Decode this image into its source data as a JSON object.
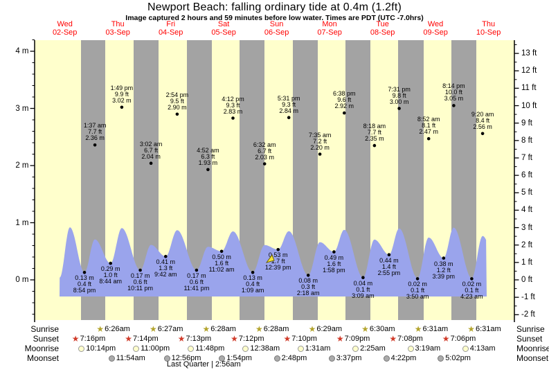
{
  "title": "Newport Beach: falling  ordinary tide at 0.4m (1.2ft)",
  "subtitle": "Image captured 2 hours and 59 minutes before low water. Times are PDT (UTC -7.0hrs)",
  "colors": {
    "day_band": "#ffffcc",
    "night_band": "#a3a3a3",
    "tide_area": "#9aa4ec",
    "date_text": "#ff0000",
    "sunrise_star": "#b3a42d",
    "sunset_star": "#d03b2a",
    "moonrise_fill": "#ffffcc",
    "moonrise_border": "#999999",
    "moonset_fill": "#ababab",
    "moonset_border": "#777777",
    "axis": "#000000",
    "current_arrow": "#f2e23a"
  },
  "footer": {
    "row_labels": {
      "sunrise": "Sunrise",
      "sunset": "Sunset",
      "moonrise": "Moonrise",
      "moonset": "Moonset"
    },
    "moon_phase": {
      "label": "Last Quarter",
      "time": "2:56am",
      "day": 5
    }
  },
  "chart_data": {
    "type": "area",
    "title": "Newport Beach: falling  ordinary tide at 0.4m (1.2ft)",
    "month": "Sep",
    "days": [
      {
        "day": 2,
        "weekday": "Wed",
        "date": "02-Sep"
      },
      {
        "day": 3,
        "weekday": "Thu",
        "date": "03-Sep"
      },
      {
        "day": 4,
        "weekday": "Fri",
        "date": "04-Sep"
      },
      {
        "day": 5,
        "weekday": "Sat",
        "date": "05-Sep"
      },
      {
        "day": 6,
        "weekday": "Sun",
        "date": "06-Sep"
      },
      {
        "day": 7,
        "weekday": "Mon",
        "date": "07-Sep"
      },
      {
        "day": 8,
        "weekday": "Tue",
        "date": "08-Sep"
      },
      {
        "day": 9,
        "weekday": "Wed",
        "date": "09-Sep"
      },
      {
        "day": 10,
        "weekday": "Thu",
        "date": "10-Sep"
      }
    ],
    "y_axis_left": {
      "unit": "m",
      "ticks": [
        {
          "v": 4,
          "label": "4 m"
        },
        {
          "v": 3,
          "label": "3 m"
        },
        {
          "v": 2,
          "label": "2 m"
        },
        {
          "v": 1,
          "label": "1 m"
        },
        {
          "v": 0,
          "label": "0 m"
        }
      ]
    },
    "y_axis_right": {
      "unit": "ft",
      "ticks": [
        {
          "v": 13,
          "label": "13 ft"
        },
        {
          "v": 12,
          "label": "12 ft"
        },
        {
          "v": 11,
          "label": "11 ft"
        },
        {
          "v": 10,
          "label": "10 ft"
        },
        {
          "v": 9,
          "label": "9 ft"
        },
        {
          "v": 8,
          "label": "8 ft"
        },
        {
          "v": 7,
          "label": "7 ft"
        },
        {
          "v": 6,
          "label": "6 ft"
        },
        {
          "v": 5,
          "label": "5 ft"
        },
        {
          "v": 4,
          "label": "4 ft"
        },
        {
          "v": 3,
          "label": "3 ft"
        },
        {
          "v": 2,
          "label": "2 ft"
        },
        {
          "v": 1,
          "label": "1 ft"
        },
        {
          "v": 0,
          "label": "0 ft"
        },
        {
          "v": -1,
          "label": "-1 ft"
        },
        {
          "v": -2,
          "label": "-2 ft"
        }
      ]
    },
    "tides": [
      {
        "day": 2,
        "time": "8:54 pm",
        "ft": 0.4,
        "m": 0.13,
        "type": "low"
      },
      {
        "day": 3,
        "time": "1:37 am",
        "ft": 7.7,
        "m": 2.36,
        "type": "high"
      },
      {
        "day": 3,
        "time": "8:44 am",
        "ft": 1.0,
        "m": 0.29,
        "type": "low"
      },
      {
        "day": 3,
        "time": "1:49 pm",
        "ft": 9.9,
        "m": 3.02,
        "type": "high"
      },
      {
        "day": 3,
        "time": "10:11 pm",
        "ft": 0.6,
        "m": 0.17,
        "type": "low"
      },
      {
        "day": 4,
        "time": "3:02 am",
        "ft": 6.7,
        "m": 2.04,
        "type": "high"
      },
      {
        "day": 4,
        "time": "9:42 am",
        "ft": 1.3,
        "m": 0.41,
        "type": "low"
      },
      {
        "day": 4,
        "time": "2:54 pm",
        "ft": 9.5,
        "m": 2.9,
        "type": "high"
      },
      {
        "day": 4,
        "time": "11:41 pm",
        "ft": 0.6,
        "m": 0.17,
        "type": "low"
      },
      {
        "day": 5,
        "time": "4:52 am",
        "ft": 6.3,
        "m": 1.93,
        "type": "high"
      },
      {
        "day": 5,
        "time": "11:02 am",
        "ft": 1.6,
        "m": 0.5,
        "type": "low"
      },
      {
        "day": 5,
        "time": "4:12 pm",
        "ft": 9.3,
        "m": 2.83,
        "type": "high"
      },
      {
        "day": 6,
        "time": "1:09 am",
        "ft": 0.4,
        "m": 0.13,
        "type": "low"
      },
      {
        "day": 6,
        "time": "6:32 am",
        "ft": 6.7,
        "m": 2.03,
        "type": "high"
      },
      {
        "day": 6,
        "time": "12:39 pm",
        "ft": 1.7,
        "m": 0.53,
        "type": "low"
      },
      {
        "day": 6,
        "time": "5:31 pm",
        "ft": 9.3,
        "m": 2.84,
        "type": "high"
      },
      {
        "day": 7,
        "time": "2:18 am",
        "ft": 0.3,
        "m": 0.08,
        "type": "low"
      },
      {
        "day": 7,
        "time": "7:35 am",
        "ft": 7.2,
        "m": 2.2,
        "type": "high"
      },
      {
        "day": 7,
        "time": "1:58 pm",
        "ft": 1.6,
        "m": 0.49,
        "type": "low"
      },
      {
        "day": 7,
        "time": "6:38 pm",
        "ft": 9.6,
        "m": 2.92,
        "type": "high"
      },
      {
        "day": 8,
        "time": "3:09 am",
        "ft": 0.1,
        "m": 0.04,
        "type": "low"
      },
      {
        "day": 8,
        "time": "8:18 am",
        "ft": 7.7,
        "m": 2.35,
        "type": "high"
      },
      {
        "day": 8,
        "time": "2:55 pm",
        "ft": 1.4,
        "m": 0.44,
        "type": "low"
      },
      {
        "day": 8,
        "time": "7:31 pm",
        "ft": 9.8,
        "m": 3.0,
        "type": "high"
      },
      {
        "day": 9,
        "time": "3:50 am",
        "ft": 0.1,
        "m": 0.02,
        "type": "low"
      },
      {
        "day": 9,
        "time": "8:52 am",
        "ft": 8.1,
        "m": 2.47,
        "type": "high"
      },
      {
        "day": 9,
        "time": "3:39 pm",
        "ft": 1.2,
        "m": 0.38,
        "type": "low"
      },
      {
        "day": 9,
        "time": "8:14 pm",
        "ft": 10.0,
        "m": 3.05,
        "type": "high"
      },
      {
        "day": 10,
        "time": "4:23 am",
        "ft": 0.1,
        "m": 0.02,
        "type": "low"
      },
      {
        "day": 10,
        "time": "9:20 am",
        "ft": 8.4,
        "m": 2.56,
        "type": "high"
      }
    ],
    "sunrise": [
      {
        "day": 3,
        "time": "6:26am"
      },
      {
        "day": 4,
        "time": "6:27am"
      },
      {
        "day": 5,
        "time": "6:28am"
      },
      {
        "day": 6,
        "time": "6:28am"
      },
      {
        "day": 7,
        "time": "6:29am"
      },
      {
        "day": 8,
        "time": "6:30am"
      },
      {
        "day": 9,
        "time": "6:31am"
      },
      {
        "day": 10,
        "time": "6:31am"
      }
    ],
    "sunset": [
      {
        "day": 2,
        "time": "7:16pm"
      },
      {
        "day": 3,
        "time": "7:14pm"
      },
      {
        "day": 4,
        "time": "7:13pm"
      },
      {
        "day": 5,
        "time": "7:12pm"
      },
      {
        "day": 6,
        "time": "7:10pm"
      },
      {
        "day": 7,
        "time": "7:09pm"
      },
      {
        "day": 8,
        "time": "7:08pm"
      },
      {
        "day": 9,
        "time": "7:06pm"
      }
    ],
    "moonrise": [
      {
        "day": 2,
        "time": "10:14pm"
      },
      {
        "day": 3,
        "time": "11:00pm"
      },
      {
        "day": 4,
        "time": "11:48pm"
      },
      {
        "day": 6,
        "time": "12:38am"
      },
      {
        "day": 7,
        "time": "1:31am"
      },
      {
        "day": 8,
        "time": "2:25am"
      },
      {
        "day": 9,
        "time": "3:19am"
      },
      {
        "day": 10,
        "time": "4:13am"
      }
    ],
    "moonset": [
      {
        "day": 3,
        "time": "11:54am"
      },
      {
        "day": 4,
        "time": "12:56pm"
      },
      {
        "day": 5,
        "time": "1:54pm"
      },
      {
        "day": 6,
        "time": "2:48pm"
      },
      {
        "day": 7,
        "time": "3:37pm"
      },
      {
        "day": 8,
        "time": "4:22pm"
      },
      {
        "day": 9,
        "time": "5:02pm"
      }
    ],
    "current_marker": {
      "day": 6,
      "time": "9:40 am"
    }
  }
}
